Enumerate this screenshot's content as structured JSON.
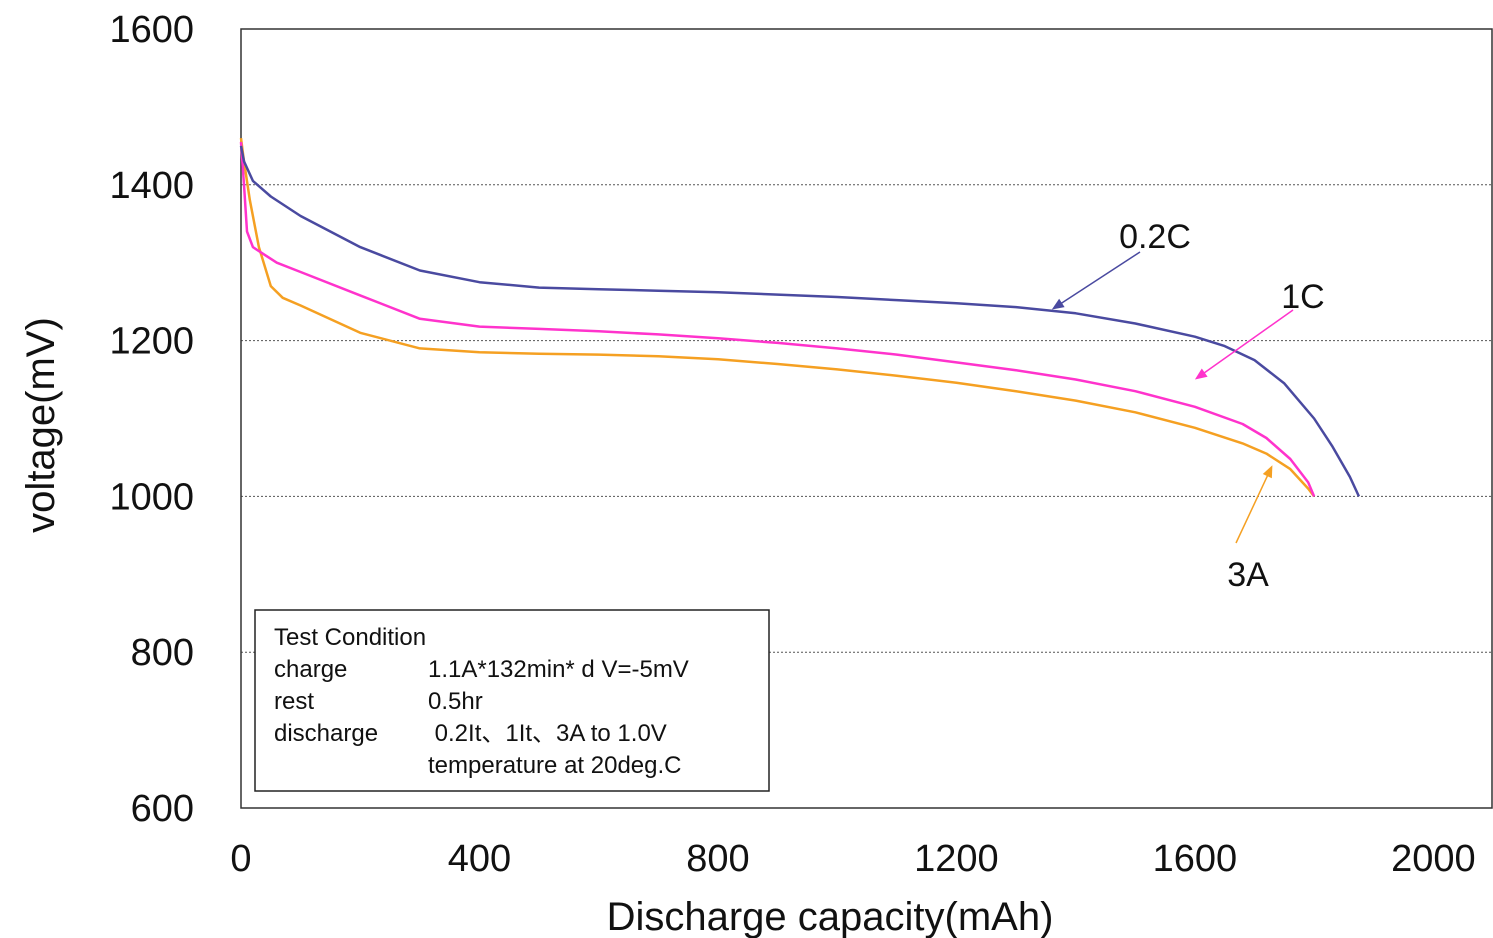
{
  "chart_data": {
    "type": "line",
    "xlabel": "Discharge capacity(mAh)",
    "ylabel": "voltage(mV)",
    "xlim": [
      0,
      2100
    ],
    "ylim": [
      600,
      1600
    ],
    "x_ticks": [
      0,
      400,
      800,
      1200,
      1600,
      2000
    ],
    "y_ticks": [
      600,
      800,
      1000,
      1200,
      1400,
      1600
    ],
    "y_gridlines": [
      800,
      1000,
      1200,
      1400
    ],
    "grid_style": "dotted horizontal",
    "series": [
      {
        "name": "0.2C",
        "color": "#4a4aa0",
        "points": [
          [
            0,
            1450
          ],
          [
            5,
            1430
          ],
          [
            20,
            1405
          ],
          [
            50,
            1385
          ],
          [
            100,
            1360
          ],
          [
            200,
            1320
          ],
          [
            300,
            1290
          ],
          [
            400,
            1275
          ],
          [
            500,
            1268
          ],
          [
            600,
            1266
          ],
          [
            700,
            1264
          ],
          [
            800,
            1262
          ],
          [
            900,
            1259
          ],
          [
            1000,
            1256
          ],
          [
            1100,
            1252
          ],
          [
            1200,
            1248
          ],
          [
            1300,
            1243
          ],
          [
            1400,
            1235
          ],
          [
            1500,
            1222
          ],
          [
            1600,
            1205
          ],
          [
            1650,
            1193
          ],
          [
            1700,
            1175
          ],
          [
            1750,
            1145
          ],
          [
            1800,
            1100
          ],
          [
            1830,
            1065
          ],
          [
            1860,
            1025
          ],
          [
            1875,
            1000
          ]
        ]
      },
      {
        "name": "1C",
        "color": "#ff33cc",
        "points": [
          [
            0,
            1455
          ],
          [
            5,
            1400
          ],
          [
            10,
            1340
          ],
          [
            20,
            1320
          ],
          [
            40,
            1310
          ],
          [
            60,
            1300
          ],
          [
            100,
            1288
          ],
          [
            200,
            1258
          ],
          [
            300,
            1228
          ],
          [
            400,
            1218
          ],
          [
            500,
            1215
          ],
          [
            600,
            1212
          ],
          [
            700,
            1208
          ],
          [
            800,
            1203
          ],
          [
            900,
            1197
          ],
          [
            1000,
            1190
          ],
          [
            1100,
            1182
          ],
          [
            1200,
            1172
          ],
          [
            1300,
            1162
          ],
          [
            1400,
            1150
          ],
          [
            1500,
            1135
          ],
          [
            1600,
            1115
          ],
          [
            1680,
            1093
          ],
          [
            1720,
            1075
          ],
          [
            1760,
            1048
          ],
          [
            1790,
            1018
          ],
          [
            1800,
            1000
          ]
        ]
      },
      {
        "name": "3A",
        "color": "#f5a022",
        "points": [
          [
            0,
            1460
          ],
          [
            5,
            1430
          ],
          [
            15,
            1380
          ],
          [
            30,
            1320
          ],
          [
            50,
            1270
          ],
          [
            70,
            1255
          ],
          [
            100,
            1245
          ],
          [
            200,
            1210
          ],
          [
            300,
            1190
          ],
          [
            400,
            1185
          ],
          [
            500,
            1183
          ],
          [
            600,
            1182
          ],
          [
            700,
            1180
          ],
          [
            800,
            1176
          ],
          [
            900,
            1170
          ],
          [
            1000,
            1163
          ],
          [
            1100,
            1155
          ],
          [
            1200,
            1146
          ],
          [
            1300,
            1135
          ],
          [
            1400,
            1123
          ],
          [
            1500,
            1108
          ],
          [
            1600,
            1088
          ],
          [
            1680,
            1068
          ],
          [
            1720,
            1055
          ],
          [
            1760,
            1035
          ],
          [
            1790,
            1010
          ],
          [
            1800,
            1000
          ]
        ]
      }
    ],
    "annotations": [
      {
        "text": "0.2C",
        "series": "0.2C",
        "arrow_to": [
          1360,
          1240
        ]
      },
      {
        "text": "1C",
        "series": "1C",
        "arrow_to": [
          1600,
          1150
        ]
      },
      {
        "text": "3A",
        "series": "3A",
        "arrow_to": [
          1730,
          1040
        ]
      }
    ],
    "legend": "none"
  },
  "test_box": {
    "title": "Test Condition",
    "rows": [
      {
        "key": "charge",
        "value": "1.1A*132min* d V=-5mV"
      },
      {
        "key": "rest",
        "value": "0.5hr"
      },
      {
        "key": "discharge",
        "value": " 0.2It、1It、3A to 1.0V"
      },
      {
        "key": "",
        "value": "temperature at 20deg.C"
      }
    ]
  }
}
